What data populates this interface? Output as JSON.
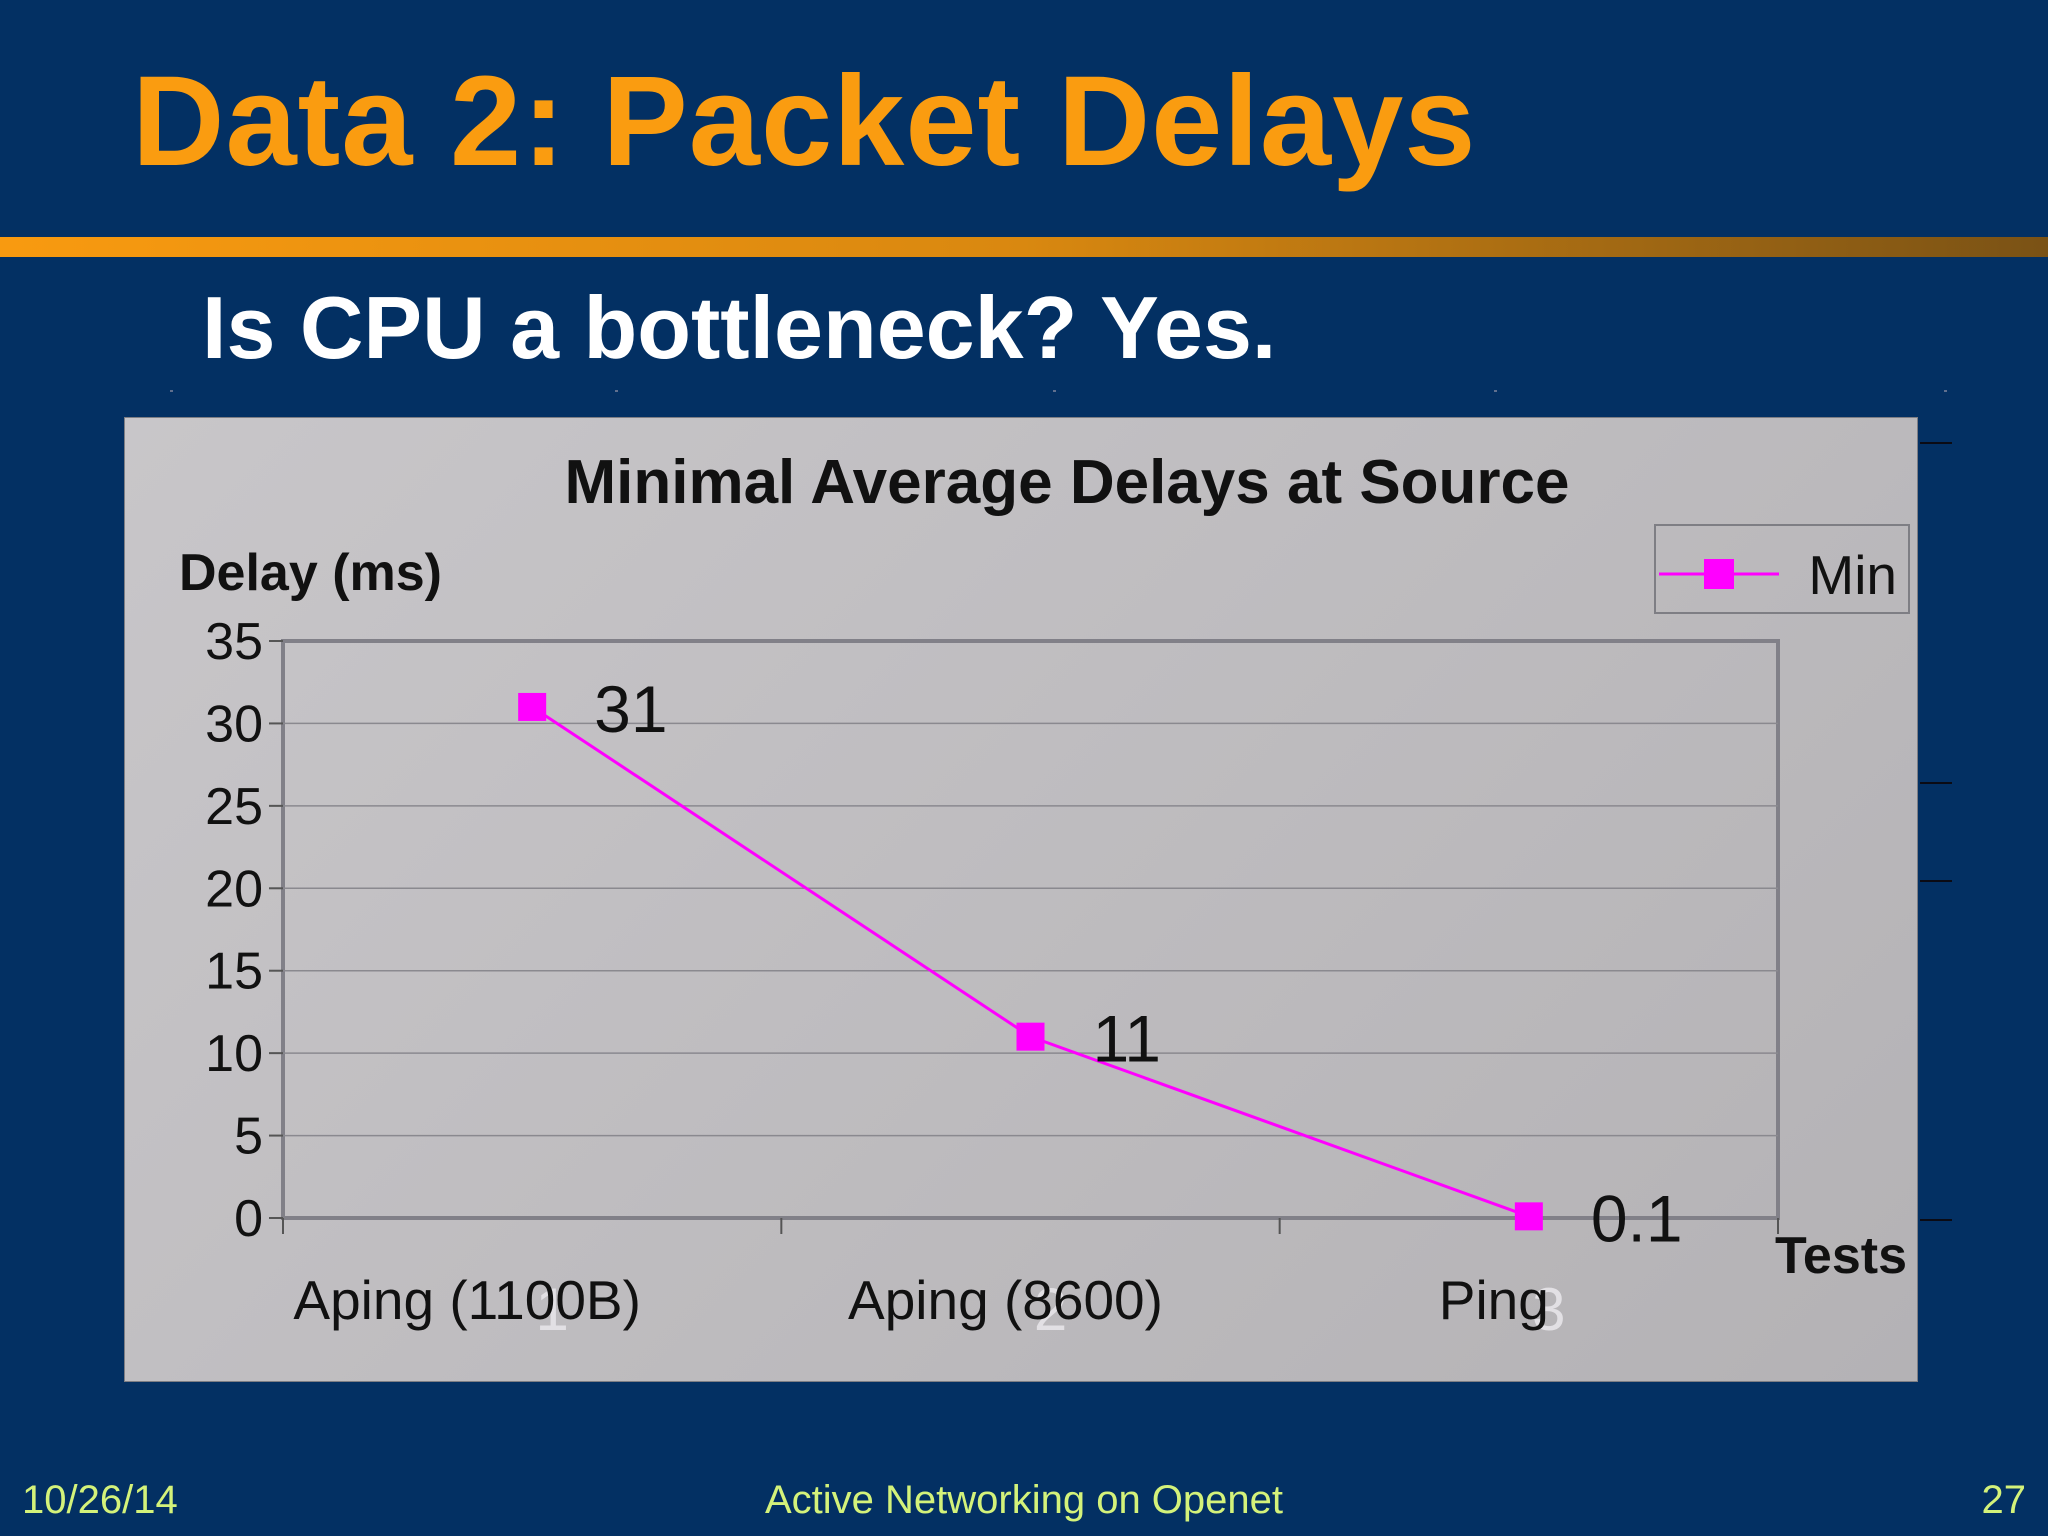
{
  "slide": {
    "title": "Data 2: Packet Delays",
    "subtitle": "Is CPU a bottleneck? Yes."
  },
  "footer": {
    "date": "10/26/14",
    "center": "Active Networking on Openet",
    "page": "27"
  },
  "colors": {
    "background": "#033063",
    "title": "#fa9c10",
    "series": "#ff00ff",
    "footer": "#d4f27a"
  },
  "chart_data": {
    "type": "line",
    "title": "Minimal Average Delays at Source",
    "ylabel": "Delay (ms)",
    "xlabel": "Tests",
    "ylim": [
      0,
      35
    ],
    "yticks": [
      0,
      5,
      10,
      15,
      20,
      25,
      30,
      35
    ],
    "categories": [
      "Aping (1100B)",
      "Aping (8600)",
      "Ping"
    ],
    "category_index_labels": [
      "1",
      "2",
      "3"
    ],
    "series": [
      {
        "name": "Min",
        "values": [
          31,
          11,
          0.1
        ],
        "data_labels": [
          "31",
          "11",
          "0.1"
        ]
      }
    ],
    "grid": true,
    "legend_position": "top-right"
  }
}
